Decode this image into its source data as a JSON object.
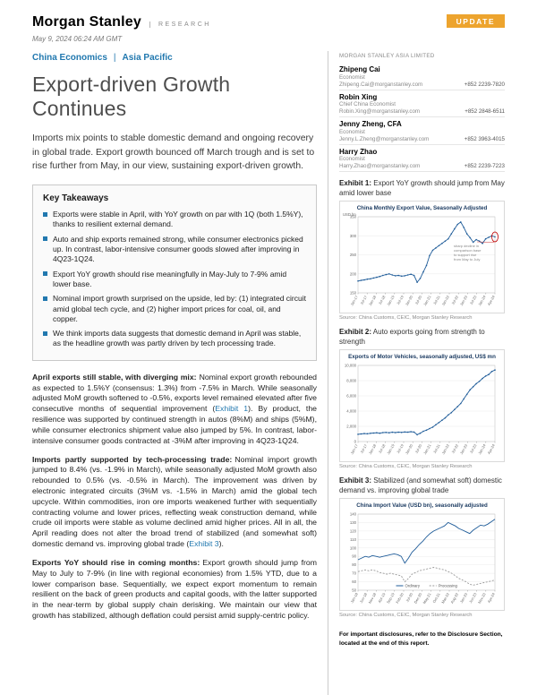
{
  "header": {
    "brand": "Morgan Stanley",
    "division": "RESEARCH",
    "badge": "UPDATE",
    "date": "May 9, 2024 06:24 AM GMT"
  },
  "main": {
    "section": "China Economics",
    "separator": "|",
    "region": "Asia Pacific",
    "title": "Export-driven Growth Continues",
    "summary": "Imports mix points to stable domestic demand and ongoing recovery in global trade. Export growth bounced off March trough and is set to rise further from May, in our view, sustaining export-driven growth.",
    "key_takeaways": {
      "title": "Key Takeaways",
      "items": [
        {
          "text": "Exports were stable in April, with YoY growth on par with 1Q (both 1.5%Y), thanks to resilient external demand."
        },
        {
          "text": "Auto and ship exports remained strong, while consumer electronics picked up. In contrast, labor-intensive consumer goods slowed after improving in 4Q23-1Q24."
        },
        {
          "text": "Export YoY growth should rise meaningfully in May-July to 7-9% amid lower base."
        },
        {
          "text": "Nominal import growth surprised on the upside, led by: (1) integrated circuit amid global tech cycle, and (2) higher import prices for coal, oil, and copper."
        },
        {
          "text": "We think imports data suggests that domestic demand in April was stable, as the headline growth was partly driven by tech processing trade."
        }
      ]
    },
    "paragraphs": [
      {
        "lead": "April exports still stable, with diverging mix:",
        "pre": "Nominal export growth rebounded as expected to 1.5%Y (consensus: 1.3%) from -7.5% in March. While seasonally adjusted MoM growth softened to -0.5%, exports level remained elevated after five consecutive months of sequential improvement (",
        "link": "Exhibit 1",
        "post": "). By product, the resilience was supported by continued strength in autos (8%M) and ships (5%M), while consumer electronics shipment value also jumped by 5%. In contrast, labor-intensive consumer goods contracted at -3%M after improving in 4Q23-1Q24."
      },
      {
        "lead": "Imports partly supported by tech-processing trade:",
        "pre": "Nominal import growth jumped to 8.4% (vs. -1.9% in March), while seasonally adjusted MoM growth also rebounded to 0.5% (vs. -0.5% in March). The improvement was driven by electronic integrated circuits (3%M vs. -1.5% in March) amid the global tech upcycle. Within commodities, iron ore imports weakened further with sequentially contracting volume and lower prices, reflecting weak construction demand, while crude oil imports were stable as volume declined amid higher prices. All in all, the April reading does not alter the broad trend of stabilized (and somewhat soft) domestic demand vs. improving global trade (",
        "link": "Exhibit 3",
        "post": ")."
      },
      {
        "lead": "Exports YoY should rise in coming months:",
        "pre": "Export growth should jump from May to July to 7-9% (in line with regional economies) from 1.5% YTD, due to a lower comparison base. Sequentially, we expect export momentum to remain resilient on the back of green products and capital goods, with the latter supported in the near-term by global supply chain derisking. We maintain our view that growth has stabilized, although deflation could persist amid supply-centric policy.",
        "link": "",
        "post": ""
      }
    ]
  },
  "right": {
    "entity": "MORGAN STANLEY ASIA LIMITED",
    "analysts": [
      {
        "name": "Zhipeng Cai",
        "role": "Economist",
        "email": "Zhipeng.Cai@morganstanley.com",
        "phone": "+852 2239-7820"
      },
      {
        "name": "Robin Xing",
        "role": "Chief China Economist",
        "email": "Robin.Xing@morganstanley.com",
        "phone": "+852 2848-6511"
      },
      {
        "name": "Jenny Zheng, CFA",
        "role": "Economist",
        "email": "Jenny.L.Zheng@morganstanley.com",
        "phone": "+852 3963-4015"
      },
      {
        "name": "Harry Zhao",
        "role": "Economist",
        "email": "Harry.Zhao@morganstanley.com",
        "phone": "+852 2239-7223"
      }
    ],
    "exhibits": [
      {
        "label": "Exhibit 1",
        "colon": ":",
        "caption": "Export YoY growth should jump from May amid lower base",
        "source": "Source: China Customs, CEIC, Morgan Stanley Research"
      },
      {
        "label": "Exhibit 2",
        "colon": ":",
        "caption": "Auto exports going from strength to strength",
        "source": "Source: China Customs, CEIC, Morgan Stanley Research"
      },
      {
        "label": "Exhibit 3",
        "colon": ":",
        "caption": "Stabilized (and somewhat soft) domestic demand vs. improving global trade",
        "source": "Source: China Customs, CEIC, Morgan Stanley Research"
      }
    ],
    "disclosure": "For important disclosures, refer to the Disclosure Section, located at the end of this report."
  },
  "chart_data": [
    {
      "type": "line",
      "title": "China Monthly Export Value, Seasonally Adjusted",
      "yunit": "USD bn",
      "ylim": [
        150,
        350
      ],
      "ystep": 50,
      "xticks": [
        "Jan-17",
        "Jul-17",
        "Jan-18",
        "Jul-18",
        "Jan-19",
        "Jul-19",
        "Jan-20",
        "Jul-20",
        "Jan-21",
        "Jul-21",
        "Jan-22",
        "Jul-22",
        "Jan-23",
        "Jul-23",
        "Jan-24",
        "Apr-24"
      ],
      "series": [
        {
          "name": "Export Value",
          "color": "#1f5c99",
          "marker": true,
          "values": [
            181,
            183,
            184,
            186,
            187,
            189,
            191,
            193,
            196,
            198,
            200,
            197,
            195,
            196,
            194,
            195,
            197,
            199,
            196,
            178,
            188,
            205,
            222,
            248,
            262,
            268,
            274,
            280,
            286,
            292,
            305,
            318,
            330,
            336,
            322,
            305,
            295,
            283,
            290,
            286,
            280,
            292,
            296,
            300,
            297
          ]
        }
      ],
      "highlight_last": true,
      "annotation": [
        "sharp decline in",
        "comparison base",
        "to support rise",
        "from May to July"
      ]
    },
    {
      "type": "line",
      "title": "Exports of Motor Vehicles, seasonally adjusted, US$ mn",
      "ylim": [
        0,
        10000
      ],
      "ystep": 2000,
      "xticks": [
        "Jan-17",
        "Jul-17",
        "Jan-18",
        "Jul-18",
        "Jan-19",
        "Jul-19",
        "Jan-20",
        "Jul-20",
        "Jan-21",
        "Jul-21",
        "Jan-22",
        "Jul-22",
        "Jan-23",
        "Jul-23",
        "Jan-24",
        "Apr-24"
      ],
      "series": [
        {
          "name": "Motor Vehicle Exports",
          "color": "#1f5c99",
          "marker": true,
          "values": [
            950,
            1000,
            1050,
            1020,
            1080,
            1120,
            1150,
            1100,
            1180,
            1200,
            1150,
            1220,
            1180,
            1230,
            1200,
            1260,
            1240,
            1300,
            1250,
            900,
            1100,
            1350,
            1500,
            1700,
            1900,
            2200,
            2500,
            2800,
            3100,
            3500,
            3800,
            4200,
            4600,
            5000,
            5600,
            6200,
            6800,
            7200,
            7600,
            7900,
            8300,
            8600,
            8800,
            9200,
            9400
          ]
        }
      ]
    },
    {
      "type": "line",
      "title": "China Import Value (USD bn), seasonally adjusted",
      "ylim": [
        50,
        140
      ],
      "ystep": 10,
      "legend": true,
      "xticks": [
        "Jan-18",
        "Jun-18",
        "Nov-18",
        "Apr-19",
        "Sep-19",
        "Feb-20",
        "Jul-20",
        "Dec-20",
        "May-21",
        "Oct-21",
        "Mar-22",
        "Aug-22",
        "Jan-23",
        "Jun-23",
        "Nov-23",
        "Apr-24"
      ],
      "series": [
        {
          "name": "Ordinary",
          "color": "#1f5c99",
          "values": [
            86,
            88,
            90,
            89,
            91,
            90,
            89,
            90,
            91,
            92,
            93,
            92,
            90,
            82,
            88,
            95,
            99,
            104,
            108,
            113,
            117,
            120,
            122,
            124,
            126,
            130,
            128,
            126,
            123,
            121,
            119,
            117,
            121,
            124,
            127,
            126,
            128,
            131,
            134
          ]
        },
        {
          "name": "Processing",
          "color": "#999999",
          "dash": true,
          "values": [
            72,
            73,
            74,
            73,
            74,
            73,
            71,
            70,
            69,
            70,
            69,
            68,
            67,
            60,
            64,
            69,
            71,
            73,
            74,
            75,
            76,
            77,
            76,
            75,
            74,
            72,
            70,
            67,
            64,
            62,
            60,
            57,
            56,
            57,
            58,
            59,
            60,
            61,
            62
          ]
        }
      ]
    }
  ]
}
